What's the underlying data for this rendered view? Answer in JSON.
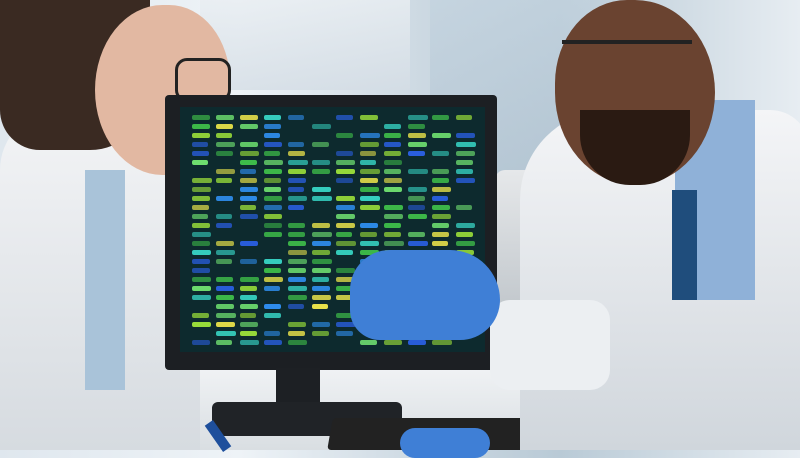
{
  "scene": {
    "description_tags": [
      "laboratory",
      "computer-monitor",
      "dna-gel-visualization"
    ],
    "colors": {
      "glove": "#3f7fd6",
      "screen_bg": "#0d2a2e",
      "band_palette": [
        "#3fbf4a",
        "#9be03a",
        "#2f8ff0",
        "#2a5fe0",
        "#36d0c0",
        "#e6e04a",
        "#6fe070"
      ]
    },
    "gel": {
      "lanes": 12,
      "bands_per_lane": 26
    }
  }
}
